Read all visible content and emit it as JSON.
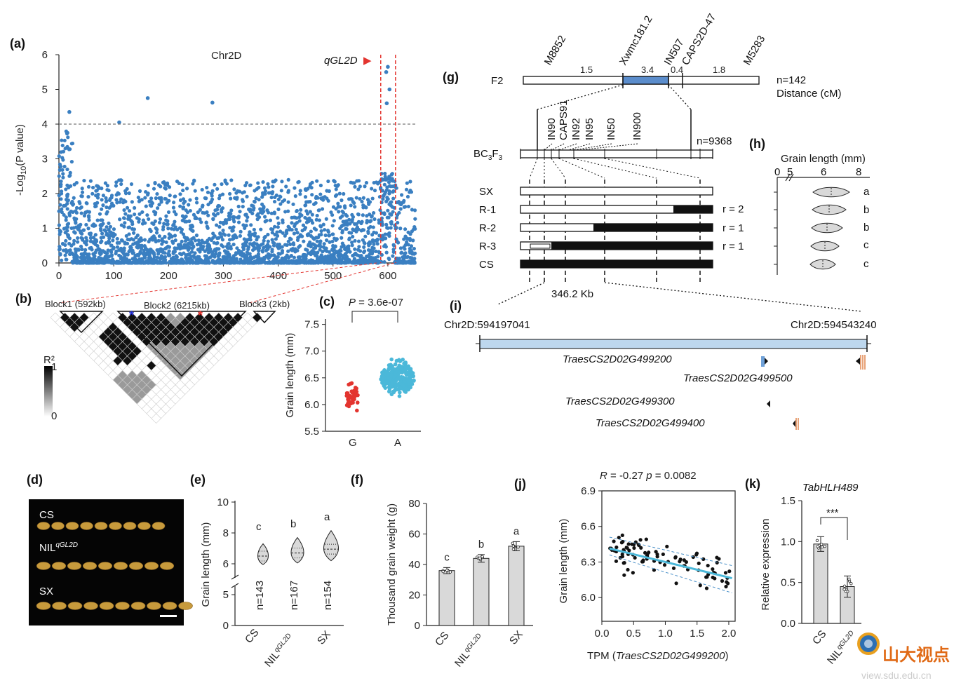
{
  "colors": {
    "manhattan": "#3a7fc1",
    "red": "#e3342f",
    "blue_bar": "#5b8dcc",
    "light_blue": "#bdd7ee",
    "cyan": "#4bb8d9",
    "grey_bar": "#d9d9d9",
    "black": "#111111"
  },
  "panels": {
    "a": "(a)",
    "b": "(b)",
    "c": "(c)",
    "d": "(d)",
    "e": "(e)",
    "f": "(f)",
    "g": "(g)",
    "h": "(h)",
    "i": "(i)",
    "j": "(j)",
    "k": "(k)"
  },
  "panel_a": {
    "chart_data": {
      "type": "scatter",
      "title": "Chr2D",
      "xlabel": "",
      "ylabel": "-Log10(P value)",
      "xlim": [
        0,
        650
      ],
      "ylim": [
        0,
        6
      ],
      "xticks": [
        "0",
        "100",
        "200",
        "300",
        "400",
        "500",
        "600"
      ],
      "yticks": [
        "0",
        "1",
        "2",
        "3",
        "4",
        "5",
        "6"
      ],
      "threshold": 4,
      "highlights": [
        {
          "x": 19,
          "y": 4.35
        },
        {
          "x": 110,
          "y": 4.05
        },
        {
          "x": 162,
          "y": 4.75
        },
        {
          "x": 280,
          "y": 4.62
        },
        {
          "x": 600,
          "y": 5.65
        },
        {
          "x": 597,
          "y": 5.5
        },
        {
          "x": 603,
          "y": 5.0
        },
        {
          "x": 598,
          "y": 4.6
        }
      ],
      "qtl_window": [
        587,
        614
      ]
    },
    "ylabel_main": "-Log",
    "ylabel_sub": "10",
    "ylabel_rest": "(P value)",
    "qtl": "qGL2D",
    "qtl_arrow": "▶"
  },
  "panel_b": {
    "blocks": [
      "Block1 (592kb)",
      "Block2 (6215kb)",
      "Block3 (2kb)"
    ],
    "legend_title": "R²",
    "legend_max": "1",
    "legend_min": "0",
    "star": "*"
  },
  "panel_c": {
    "chart_data": {
      "type": "scatter",
      "title": "P = 3.6e-07",
      "xlabel": "",
      "ylabel": "Grain length (mm)",
      "categories": [
        "G",
        "A"
      ],
      "ylim": [
        5.5,
        7.6
      ],
      "yticks": [
        "5.5",
        "6.0",
        "6.5",
        "7.0",
        "7.5"
      ]
    },
    "p_label": "P",
    "p_value": " = 3.6e-07"
  },
  "panel_d": {
    "labels": [
      "CS",
      "NIL",
      "SX"
    ],
    "nil_sup": "qGL2D"
  },
  "panel_e": {
    "chart_data": {
      "type": "violin",
      "ylabel": "Grain length (mm)",
      "categories": [
        "CS",
        "NIL",
        "SX"
      ],
      "yticks": [
        "0",
        "5",
        "6",
        "8",
        "10"
      ],
      "ns": [
        "n=143",
        "n=167",
        "n=154"
      ],
      "letters": [
        "c",
        "b",
        "a"
      ],
      "medians": [
        6.5,
        6.7,
        6.95
      ]
    },
    "nil_sup": "qGL2D"
  },
  "panel_f": {
    "chart_data": {
      "type": "bar",
      "ylabel": "Thousand grain weight (g)",
      "categories": [
        "CS",
        "NIL",
        "SX"
      ],
      "values": [
        36,
        44,
        52
      ],
      "errors": [
        2,
        2.5,
        3
      ],
      "ylim": [
        0,
        80
      ],
      "yticks": [
        "0",
        "20",
        "40",
        "60",
        "80"
      ],
      "letters": [
        "c",
        "b",
        "a"
      ]
    },
    "nil_sup": "qGL2D"
  },
  "panel_g": {
    "f2_label": "F2",
    "f2_markers": [
      "M8852",
      "Xwmc181.2",
      "IN507",
      "CAPS2D-47",
      "M5283"
    ],
    "distances": [
      "1.5",
      "3.4",
      "0.4",
      "1.8"
    ],
    "n_f2": "n=142",
    "distance_unit": "Distance (cM)",
    "bc_label_main": "BC",
    "bc_sub1": "3",
    "bc_mid": "F",
    "bc_sub2": "3",
    "bc_markers": [
      "IN90",
      "CAPS91",
      "IN92",
      "IN95",
      "IN50",
      "IN900"
    ],
    "n_bc": "n=9368",
    "rows": [
      {
        "label": "SX",
        "r": ""
      },
      {
        "label": "R-1",
        "r": "r = 2"
      },
      {
        "label": "R-2",
        "r": "r = 1"
      },
      {
        "label": "R-3",
        "r": "r = 1"
      },
      {
        "label": "CS",
        "r": ""
      }
    ],
    "interval": "346.2 Kb"
  },
  "panel_h": {
    "title": "Grain length (mm)",
    "ticks": [
      "0",
      "5",
      "6",
      "8"
    ],
    "letters": [
      "a",
      "b",
      "b",
      "c",
      "c"
    ]
  },
  "panel_i": {
    "start": "Chr2D:594197041",
    "end": "Chr2D:594543240",
    "genes": [
      "TraesCS2D02G499200",
      "TraesCS2D02G499500",
      "TraesCS2D02G499300",
      "TraesCS2D02G499400"
    ]
  },
  "panel_j": {
    "chart_data": {
      "type": "scatter",
      "title": "R = -0.27 p = 0.0082",
      "xlabel": "TPM (TraesCS2D02G499200)",
      "ylabel": "Grain length (mm)",
      "xlim": [
        0,
        2.1
      ],
      "ylim": [
        5.8,
        6.9
      ],
      "xticks": [
        "0.0",
        "0.5",
        "1.0",
        "1.5",
        "2.0"
      ],
      "yticks": [
        "6.0",
        "6.3",
        "6.6",
        "6.9"
      ],
      "fit": {
        "slope": -0.13,
        "intercept": 6.43
      }
    },
    "title_R": "R",
    "title_mid": " = -0.27 ",
    "title_p": "p",
    "title_end": " = 0.0082",
    "xlabel_plain": "TPM  (",
    "xlabel_gene": "TraesCS2D02G499200",
    "xlabel_close": ")"
  },
  "panel_k": {
    "chart_data": {
      "type": "bar",
      "title": "TabHLH489",
      "ylabel": "Relative expression",
      "categories": [
        "CS",
        "NIL"
      ],
      "values": [
        0.97,
        0.45
      ],
      "errors": [
        0.09,
        0.13
      ],
      "ylim": [
        0,
        1.5
      ],
      "yticks": [
        "0.0",
        "0.5",
        "1.0",
        "1.5"
      ]
    },
    "sig": "***",
    "nil_sup": "qGL2D"
  },
  "watermark": {
    "text": "山大视点",
    "url": "view.sdu.edu.cn"
  }
}
